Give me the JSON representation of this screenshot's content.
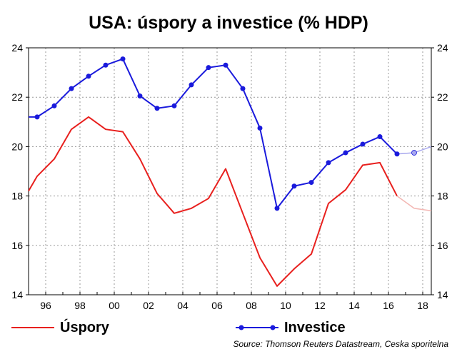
{
  "chart_data": {
    "type": "line",
    "title": "USA: úspory a investice (% HDP)",
    "source": "Source: Thomson Reuters Datastream, Ceska sporitelna",
    "ylim": [
      14,
      24
    ],
    "y_ticks": [
      "14",
      "16",
      "18",
      "20",
      "22",
      "24"
    ],
    "xlim": [
      1995,
      2018.5
    ],
    "x_ticks": [
      {
        "value": 1996,
        "label": "96"
      },
      {
        "value": 1998,
        "label": "98"
      },
      {
        "value": 2000,
        "label": "00"
      },
      {
        "value": 2002,
        "label": "02"
      },
      {
        "value": 2004,
        "label": "04"
      },
      {
        "value": 2006,
        "label": "06"
      },
      {
        "value": 2008,
        "label": "08"
      },
      {
        "value": 2010,
        "label": "10"
      },
      {
        "value": 2012,
        "label": "12"
      },
      {
        "value": 2014,
        "label": "14"
      },
      {
        "value": 2016,
        "label": "16"
      },
      {
        "value": 2018,
        "label": "18"
      }
    ],
    "grid": true,
    "legend_position": "bottom",
    "series": [
      {
        "name": "Úspory",
        "color": "#e8201e",
        "forecast_color": "#f3b7b3",
        "markers": false,
        "x": [
          1995,
          1995.5,
          1996.5,
          1997.5,
          1998.5,
          1999.5,
          2000.5,
          2001.5,
          2002.5,
          2003.5,
          2004.5,
          2005.5,
          2006.5,
          2007.5,
          2008.5,
          2009.5,
          2010.5,
          2011.5,
          2012.5,
          2013.5,
          2014.5,
          2015.5,
          2016.5,
          2017.5,
          2018.5
        ],
        "values": [
          18.2,
          18.8,
          19.5,
          20.7,
          21.2,
          20.7,
          20.6,
          19.5,
          18.1,
          17.3,
          17.5,
          17.9,
          19.1,
          17.3,
          15.5,
          14.35,
          15.05,
          15.65,
          17.7,
          18.25,
          19.25,
          19.35,
          18.0,
          17.5,
          17.4
        ],
        "forecast_from_index": 22
      },
      {
        "name": "Investice",
        "color": "#1a1adc",
        "forecast_color": "#a8a8ee",
        "markers": true,
        "x": [
          1995,
          1995.5,
          1996.5,
          1997.5,
          1998.5,
          1999.5,
          2000.5,
          2001.5,
          2002.5,
          2003.5,
          2004.5,
          2005.5,
          2006.5,
          2007.5,
          2008.5,
          2009.5,
          2010.5,
          2011.5,
          2012.5,
          2013.5,
          2014.5,
          2015.5,
          2016.5,
          2017.5,
          2018.5
        ],
        "values": [
          21.2,
          21.2,
          21.65,
          22.35,
          22.85,
          23.3,
          23.55,
          22.05,
          21.55,
          21.65,
          22.5,
          23.2,
          23.3,
          22.35,
          20.75,
          17.5,
          18.4,
          18.55,
          19.35,
          19.75,
          20.1,
          20.4,
          19.7,
          19.75,
          20.0
        ],
        "forecast_from_index": 22
      }
    ]
  }
}
